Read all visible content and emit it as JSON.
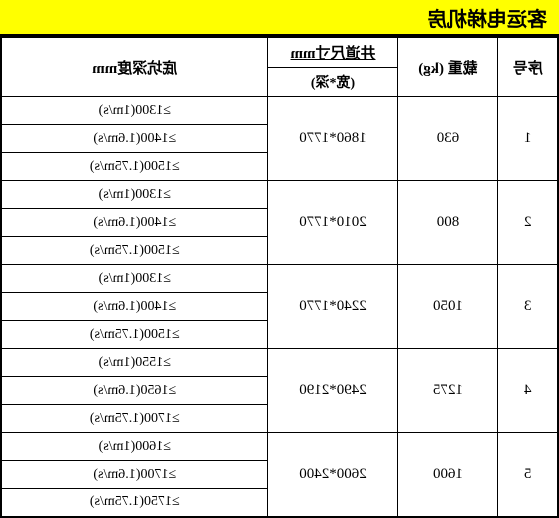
{
  "title": "客运电梯机房",
  "headers": {
    "seq": "序号",
    "load": "载重 (kg)",
    "shaft_top": "井道尺寸mm",
    "shaft_sub": "(宽*深)",
    "pit": "底坑深度mm"
  },
  "rows": [
    {
      "seq": "1",
      "load": "630",
      "shaft": "1860*1770",
      "pits": [
        "≥1300(1m/s)",
        "≥1400(1.6m/s)",
        "≥1500(1.75m/s)"
      ]
    },
    {
      "seq": "2",
      "load": "800",
      "shaft": "2010*1770",
      "pits": [
        "≥1300(1m/s)",
        "≥1400(1.6m/s)",
        "≥1500(1.75m/s)"
      ]
    },
    {
      "seq": "3",
      "load": "1050",
      "shaft": "2240*1770",
      "pits": [
        "≥1300(1m/s)",
        "≥1400(1.6m/s)",
        "≥1500(1.75m/s)"
      ]
    },
    {
      "seq": "4",
      "load": "1275",
      "shaft": "2490*2190",
      "pits": [
        "≥1550(1m/s)",
        "≥1650(1.6m/s)",
        "≥1700(1.75m/s)"
      ]
    },
    {
      "seq": "5",
      "load": "1600",
      "shaft": "2600*2400",
      "pits": [
        "≥1600(1m/s)",
        "≥1700(1.6m/s)",
        "≥1750(1.75m/s)"
      ]
    }
  ],
  "styling": {
    "title_bg": "#ffff00",
    "border_color": "#000000",
    "bg_color": "#ffffff",
    "font_family": "SimSun",
    "title_fontsize": 20,
    "cell_fontsize": 15,
    "mirrored": true
  }
}
